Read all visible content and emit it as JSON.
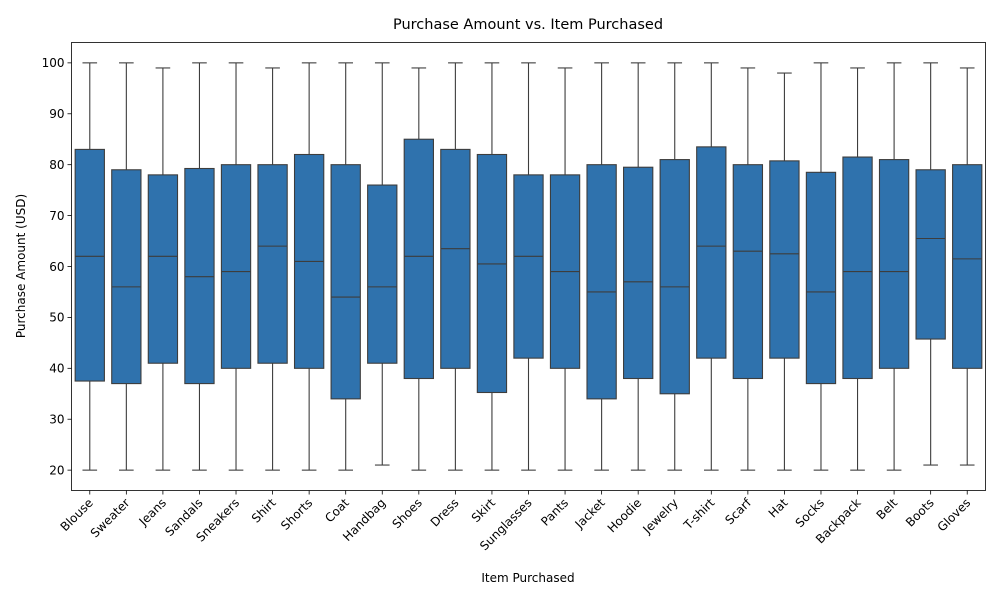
{
  "chart_data": {
    "type": "box",
    "title": "Purchase Amount vs. Item Purchased",
    "xlabel": "Item Purchased",
    "ylabel": "Purchase Amount (USD)",
    "ylim": [
      16,
      104
    ],
    "yticks": [
      20,
      30,
      40,
      50,
      60,
      70,
      80,
      90,
      100
    ],
    "box_color": "#2f72ad",
    "line_color": "#3d3d3d",
    "grid": false,
    "categories": [
      "Blouse",
      "Sweater",
      "Jeans",
      "Sandals",
      "Sneakers",
      "Shirt",
      "Shorts",
      "Coat",
      "Handbag",
      "Shoes",
      "Dress",
      "Skirt",
      "Sunglasses",
      "Pants",
      "Jacket",
      "Hoodie",
      "Jewelry",
      "T-shirt",
      "Scarf",
      "Hat",
      "Socks",
      "Backpack",
      "Belt",
      "Boots",
      "Gloves"
    ],
    "boxes": [
      {
        "min": 20,
        "q1": 37.5,
        "median": 62,
        "q3": 83,
        "max": 100
      },
      {
        "min": 20,
        "q1": 37,
        "median": 56,
        "q3": 79,
        "max": 100
      },
      {
        "min": 20,
        "q1": 41,
        "median": 62,
        "q3": 78,
        "max": 99
      },
      {
        "min": 20,
        "q1": 37,
        "median": 58,
        "q3": 79.25,
        "max": 100
      },
      {
        "min": 20,
        "q1": 40,
        "median": 59,
        "q3": 80,
        "max": 100
      },
      {
        "min": 20,
        "q1": 41,
        "median": 64,
        "q3": 80,
        "max": 99
      },
      {
        "min": 20,
        "q1": 40,
        "median": 61,
        "q3": 82,
        "max": 100
      },
      {
        "min": 20,
        "q1": 34,
        "median": 54,
        "q3": 80,
        "max": 100
      },
      {
        "min": 21,
        "q1": 41,
        "median": 56,
        "q3": 76,
        "max": 100
      },
      {
        "min": 20,
        "q1": 38,
        "median": 62,
        "q3": 85,
        "max": 99
      },
      {
        "min": 20,
        "q1": 40,
        "median": 63.5,
        "q3": 83,
        "max": 100
      },
      {
        "min": 20,
        "q1": 35.25,
        "median": 60.5,
        "q3": 82,
        "max": 100
      },
      {
        "min": 20,
        "q1": 42,
        "median": 62,
        "q3": 78,
        "max": 100
      },
      {
        "min": 20,
        "q1": 40,
        "median": 59,
        "q3": 78,
        "max": 99
      },
      {
        "min": 20,
        "q1": 34,
        "median": 55,
        "q3": 80,
        "max": 100
      },
      {
        "min": 20,
        "q1": 38,
        "median": 57,
        "q3": 79.5,
        "max": 100
      },
      {
        "min": 20,
        "q1": 35,
        "median": 56,
        "q3": 81,
        "max": 100
      },
      {
        "min": 20,
        "q1": 42,
        "median": 64,
        "q3": 83.5,
        "max": 100
      },
      {
        "min": 20,
        "q1": 38,
        "median": 63,
        "q3": 80,
        "max": 99
      },
      {
        "min": 20,
        "q1": 42,
        "median": 62.5,
        "q3": 80.75,
        "max": 98
      },
      {
        "min": 20,
        "q1": 37,
        "median": 55,
        "q3": 78.5,
        "max": 100
      },
      {
        "min": 20,
        "q1": 38,
        "median": 59,
        "q3": 81.5,
        "max": 99
      },
      {
        "min": 20,
        "q1": 40,
        "median": 59,
        "q3": 81,
        "max": 100
      },
      {
        "min": 21,
        "q1": 45.75,
        "median": 65.5,
        "q3": 79,
        "max": 100
      },
      {
        "min": 21,
        "q1": 40,
        "median": 61.5,
        "q3": 80,
        "max": 99
      }
    ]
  }
}
